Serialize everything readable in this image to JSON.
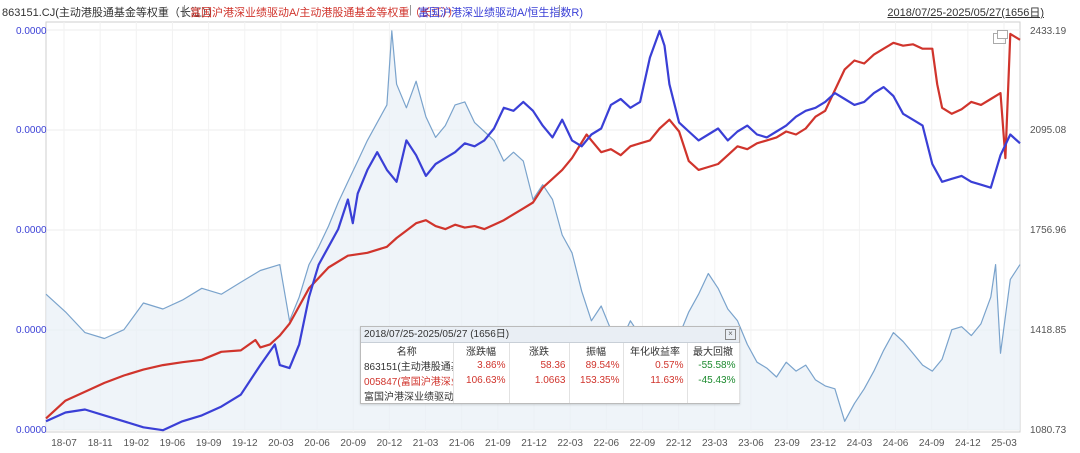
{
  "header": {
    "title_parts": [
      {
        "text": "863151.CJ(主动港股通基金等权重（长江））",
        "color": "black"
      },
      {
        "text": "|",
        "color": "sep"
      },
      {
        "text": "富国沪港深业绩驱动A/主动港股通基金等权重（长江））",
        "color": "red"
      },
      {
        "text": "|",
        "color": "sep"
      },
      {
        "text": "富国沪港深业绩驱动A/恒生指数R)",
        "color": "blue"
      },
      {
        "text": "|",
        "color": "sep"
      }
    ],
    "date_range": "2018/07/25-2025/05/27(1656日)"
  },
  "chart_data": {
    "type": "line",
    "x_range": [
      "2018-07-25",
      "2025-05-27"
    ],
    "x_ticks": [
      "18-07",
      "18-11",
      "19-02",
      "19-06",
      "19-09",
      "19-12",
      "20-03",
      "20-06",
      "20-09",
      "20-12",
      "21-03",
      "21-06",
      "21-09",
      "21-12",
      "22-03",
      "22-06",
      "22-09",
      "22-12",
      "23-03",
      "23-06",
      "23-09",
      "23-12",
      "24-03",
      "24-06",
      "24-09",
      "24-12",
      "25-03"
    ],
    "y_left_ticks": [
      "0.0000",
      "0.0000",
      "0.0000",
      "0.0000",
      "0.0000"
    ],
    "y_right_ticks": [
      "2433.19",
      "2095.08",
      "1756.96",
      "1418.85",
      "1080.73"
    ],
    "y_right_range": [
      1080.73,
      2433.19
    ],
    "grid": true,
    "series": [
      {
        "name": "富国沪港深业绩驱动A/主动港股通基金等权重（长江））",
        "color": "#d0342c",
        "points": [
          [
            0.0,
            1120
          ],
          [
            0.02,
            1180
          ],
          [
            0.04,
            1210
          ],
          [
            0.06,
            1240
          ],
          [
            0.08,
            1265
          ],
          [
            0.1,
            1285
          ],
          [
            0.12,
            1300
          ],
          [
            0.14,
            1310
          ],
          [
            0.16,
            1318
          ],
          [
            0.18,
            1345
          ],
          [
            0.2,
            1350
          ],
          [
            0.215,
            1385
          ],
          [
            0.22,
            1360
          ],
          [
            0.23,
            1370
          ],
          [
            0.24,
            1400
          ],
          [
            0.25,
            1440
          ],
          [
            0.255,
            1470
          ],
          [
            0.27,
            1560
          ],
          [
            0.29,
            1630
          ],
          [
            0.31,
            1670
          ],
          [
            0.33,
            1680
          ],
          [
            0.35,
            1700
          ],
          [
            0.36,
            1730
          ],
          [
            0.37,
            1755
          ],
          [
            0.38,
            1780
          ],
          [
            0.39,
            1790
          ],
          [
            0.4,
            1770
          ],
          [
            0.41,
            1760
          ],
          [
            0.42,
            1775
          ],
          [
            0.43,
            1765
          ],
          [
            0.44,
            1770
          ],
          [
            0.45,
            1760
          ],
          [
            0.46,
            1775
          ],
          [
            0.47,
            1790
          ],
          [
            0.48,
            1810
          ],
          [
            0.49,
            1830
          ],
          [
            0.5,
            1850
          ],
          [
            0.51,
            1900
          ],
          [
            0.52,
            1930
          ],
          [
            0.53,
            1960
          ],
          [
            0.54,
            2000
          ],
          [
            0.555,
            2080
          ],
          [
            0.56,
            2060
          ],
          [
            0.57,
            2020
          ],
          [
            0.58,
            2030
          ],
          [
            0.59,
            2010
          ],
          [
            0.6,
            2040
          ],
          [
            0.61,
            2050
          ],
          [
            0.62,
            2060
          ],
          [
            0.63,
            2100
          ],
          [
            0.64,
            2130
          ],
          [
            0.65,
            2090
          ],
          [
            0.66,
            1990
          ],
          [
            0.67,
            1960
          ],
          [
            0.68,
            1970
          ],
          [
            0.69,
            1980
          ],
          [
            0.7,
            2010
          ],
          [
            0.71,
            2040
          ],
          [
            0.72,
            2030
          ],
          [
            0.73,
            2050
          ],
          [
            0.74,
            2060
          ],
          [
            0.75,
            2070
          ],
          [
            0.76,
            2090
          ],
          [
            0.77,
            2080
          ],
          [
            0.78,
            2100
          ],
          [
            0.79,
            2140
          ],
          [
            0.8,
            2160
          ],
          [
            0.81,
            2230
          ],
          [
            0.82,
            2300
          ],
          [
            0.83,
            2330
          ],
          [
            0.84,
            2320
          ],
          [
            0.85,
            2350
          ],
          [
            0.86,
            2370
          ],
          [
            0.87,
            2390
          ],
          [
            0.88,
            2380
          ],
          [
            0.89,
            2385
          ],
          [
            0.9,
            2370
          ],
          [
            0.91,
            2370
          ],
          [
            0.915,
            2250
          ],
          [
            0.92,
            2170
          ],
          [
            0.93,
            2150
          ],
          [
            0.94,
            2165
          ],
          [
            0.95,
            2190
          ],
          [
            0.96,
            2180
          ],
          [
            0.97,
            2200
          ],
          [
            0.98,
            2220
          ],
          [
            0.985,
            2000
          ],
          [
            0.99,
            2420
          ],
          [
            1.0,
            2400
          ]
        ]
      },
      {
        "name": "富国沪港深业绩驱动A/恒生指数R)",
        "color": "#3a3fd6",
        "points": [
          [
            0.0,
            1110
          ],
          [
            0.02,
            1140
          ],
          [
            0.04,
            1150
          ],
          [
            0.06,
            1130
          ],
          [
            0.08,
            1110
          ],
          [
            0.1,
            1090
          ],
          [
            0.12,
            1080
          ],
          [
            0.14,
            1110
          ],
          [
            0.16,
            1130
          ],
          [
            0.18,
            1160
          ],
          [
            0.2,
            1200
          ],
          [
            0.22,
            1300
          ],
          [
            0.235,
            1370
          ],
          [
            0.24,
            1300
          ],
          [
            0.25,
            1290
          ],
          [
            0.26,
            1370
          ],
          [
            0.27,
            1530
          ],
          [
            0.28,
            1640
          ],
          [
            0.29,
            1700
          ],
          [
            0.3,
            1760
          ],
          [
            0.31,
            1860
          ],
          [
            0.315,
            1780
          ],
          [
            0.32,
            1880
          ],
          [
            0.33,
            1960
          ],
          [
            0.34,
            2020
          ],
          [
            0.35,
            1960
          ],
          [
            0.36,
            1920
          ],
          [
            0.37,
            2060
          ],
          [
            0.38,
            2010
          ],
          [
            0.39,
            1940
          ],
          [
            0.4,
            1980
          ],
          [
            0.41,
            2000
          ],
          [
            0.42,
            2020
          ],
          [
            0.43,
            2050
          ],
          [
            0.44,
            2040
          ],
          [
            0.45,
            2060
          ],
          [
            0.46,
            2100
          ],
          [
            0.47,
            2170
          ],
          [
            0.48,
            2160
          ],
          [
            0.49,
            2190
          ],
          [
            0.5,
            2160
          ],
          [
            0.51,
            2110
          ],
          [
            0.52,
            2070
          ],
          [
            0.53,
            2130
          ],
          [
            0.54,
            2060
          ],
          [
            0.55,
            2040
          ],
          [
            0.56,
            2080
          ],
          [
            0.57,
            2100
          ],
          [
            0.58,
            2180
          ],
          [
            0.59,
            2200
          ],
          [
            0.6,
            2170
          ],
          [
            0.61,
            2190
          ],
          [
            0.62,
            2340
          ],
          [
            0.63,
            2430
          ],
          [
            0.635,
            2380
          ],
          [
            0.64,
            2250
          ],
          [
            0.65,
            2120
          ],
          [
            0.66,
            2090
          ],
          [
            0.67,
            2060
          ],
          [
            0.68,
            2080
          ],
          [
            0.69,
            2100
          ],
          [
            0.7,
            2060
          ],
          [
            0.71,
            2090
          ],
          [
            0.72,
            2110
          ],
          [
            0.73,
            2080
          ],
          [
            0.74,
            2070
          ],
          [
            0.75,
            2090
          ],
          [
            0.76,
            2110
          ],
          [
            0.77,
            2140
          ],
          [
            0.78,
            2160
          ],
          [
            0.79,
            2170
          ],
          [
            0.8,
            2190
          ],
          [
            0.81,
            2220
          ],
          [
            0.82,
            2200
          ],
          [
            0.83,
            2180
          ],
          [
            0.84,
            2190
          ],
          [
            0.85,
            2220
          ],
          [
            0.86,
            2240
          ],
          [
            0.87,
            2210
          ],
          [
            0.88,
            2150
          ],
          [
            0.89,
            2130
          ],
          [
            0.9,
            2110
          ],
          [
            0.91,
            1980
          ],
          [
            0.92,
            1920
          ],
          [
            0.93,
            1930
          ],
          [
            0.94,
            1940
          ],
          [
            0.95,
            1920
          ],
          [
            0.96,
            1910
          ],
          [
            0.97,
            1900
          ],
          [
            0.98,
            2010
          ],
          [
            0.99,
            2080
          ],
          [
            1.0,
            2050
          ]
        ]
      },
      {
        "name": "863151.CJ(主动港股通基金等权重（长江））",
        "color": "#7aa3cc",
        "area": true,
        "points": [
          [
            0.0,
            1540
          ],
          [
            0.02,
            1480
          ],
          [
            0.04,
            1410
          ],
          [
            0.06,
            1390
          ],
          [
            0.08,
            1420
          ],
          [
            0.1,
            1510
          ],
          [
            0.12,
            1490
          ],
          [
            0.14,
            1520
          ],
          [
            0.16,
            1560
          ],
          [
            0.18,
            1540
          ],
          [
            0.2,
            1580
          ],
          [
            0.22,
            1620
          ],
          [
            0.24,
            1640
          ],
          [
            0.25,
            1450
          ],
          [
            0.26,
            1530
          ],
          [
            0.27,
            1640
          ],
          [
            0.28,
            1700
          ],
          [
            0.29,
            1770
          ],
          [
            0.3,
            1850
          ],
          [
            0.31,
            1920
          ],
          [
            0.32,
            1990
          ],
          [
            0.33,
            2060
          ],
          [
            0.34,
            2120
          ],
          [
            0.35,
            2180
          ],
          [
            0.355,
            2430
          ],
          [
            0.36,
            2250
          ],
          [
            0.37,
            2170
          ],
          [
            0.38,
            2260
          ],
          [
            0.39,
            2140
          ],
          [
            0.4,
            2070
          ],
          [
            0.41,
            2110
          ],
          [
            0.42,
            2180
          ],
          [
            0.43,
            2190
          ],
          [
            0.44,
            2120
          ],
          [
            0.45,
            2090
          ],
          [
            0.46,
            2060
          ],
          [
            0.47,
            1990
          ],
          [
            0.48,
            2020
          ],
          [
            0.49,
            1990
          ],
          [
            0.5,
            1860
          ],
          [
            0.51,
            1910
          ],
          [
            0.52,
            1860
          ],
          [
            0.53,
            1740
          ],
          [
            0.54,
            1680
          ],
          [
            0.55,
            1550
          ],
          [
            0.56,
            1450
          ],
          [
            0.57,
            1500
          ],
          [
            0.58,
            1420
          ],
          [
            0.59,
            1380
          ],
          [
            0.6,
            1450
          ],
          [
            0.61,
            1400
          ],
          [
            0.62,
            1350
          ],
          [
            0.63,
            1250
          ],
          [
            0.64,
            1290
          ],
          [
            0.65,
            1400
          ],
          [
            0.66,
            1480
          ],
          [
            0.67,
            1540
          ],
          [
            0.68,
            1610
          ],
          [
            0.69,
            1560
          ],
          [
            0.7,
            1490
          ],
          [
            0.71,
            1450
          ],
          [
            0.72,
            1370
          ],
          [
            0.73,
            1310
          ],
          [
            0.74,
            1290
          ],
          [
            0.75,
            1260
          ],
          [
            0.76,
            1310
          ],
          [
            0.77,
            1280
          ],
          [
            0.78,
            1300
          ],
          [
            0.79,
            1250
          ],
          [
            0.8,
            1230
          ],
          [
            0.81,
            1220
          ],
          [
            0.82,
            1110
          ],
          [
            0.83,
            1170
          ],
          [
            0.84,
            1220
          ],
          [
            0.85,
            1280
          ],
          [
            0.86,
            1350
          ],
          [
            0.87,
            1410
          ],
          [
            0.88,
            1380
          ],
          [
            0.89,
            1340
          ],
          [
            0.9,
            1300
          ],
          [
            0.91,
            1280
          ],
          [
            0.92,
            1320
          ],
          [
            0.93,
            1420
          ],
          [
            0.94,
            1430
          ],
          [
            0.95,
            1400
          ],
          [
            0.96,
            1440
          ],
          [
            0.97,
            1530
          ],
          [
            0.975,
            1640
          ],
          [
            0.98,
            1340
          ],
          [
            0.99,
            1590
          ],
          [
            1.0,
            1640
          ]
        ]
      }
    ]
  },
  "stats_panel": {
    "title": "2018/07/25-2025/05/27 (1656日)",
    "close_glyph": "×",
    "columns": [
      "名称",
      "涨跌幅",
      "涨跌",
      "振幅",
      "年化收益率",
      "最大回撤"
    ],
    "rows": [
      {
        "name": "863151(主动港股通基",
        "pct": "3.86%",
        "chg": "58.36",
        "amp": "89.54%",
        "ann": "0.57%",
        "dd": "-55.58%",
        "style": "black"
      },
      {
        "name": "005847(富国沪港深业",
        "pct": "106.63%",
        "chg": "1.0663",
        "amp": "153.35%",
        "ann": "11.63%",
        "dd": "-45.43%",
        "style": "red"
      },
      {
        "name": "富国沪港深业绩驱动A",
        "pct": "",
        "chg": "",
        "amp": "",
        "ann": "",
        "dd": "",
        "style": "black"
      }
    ]
  }
}
